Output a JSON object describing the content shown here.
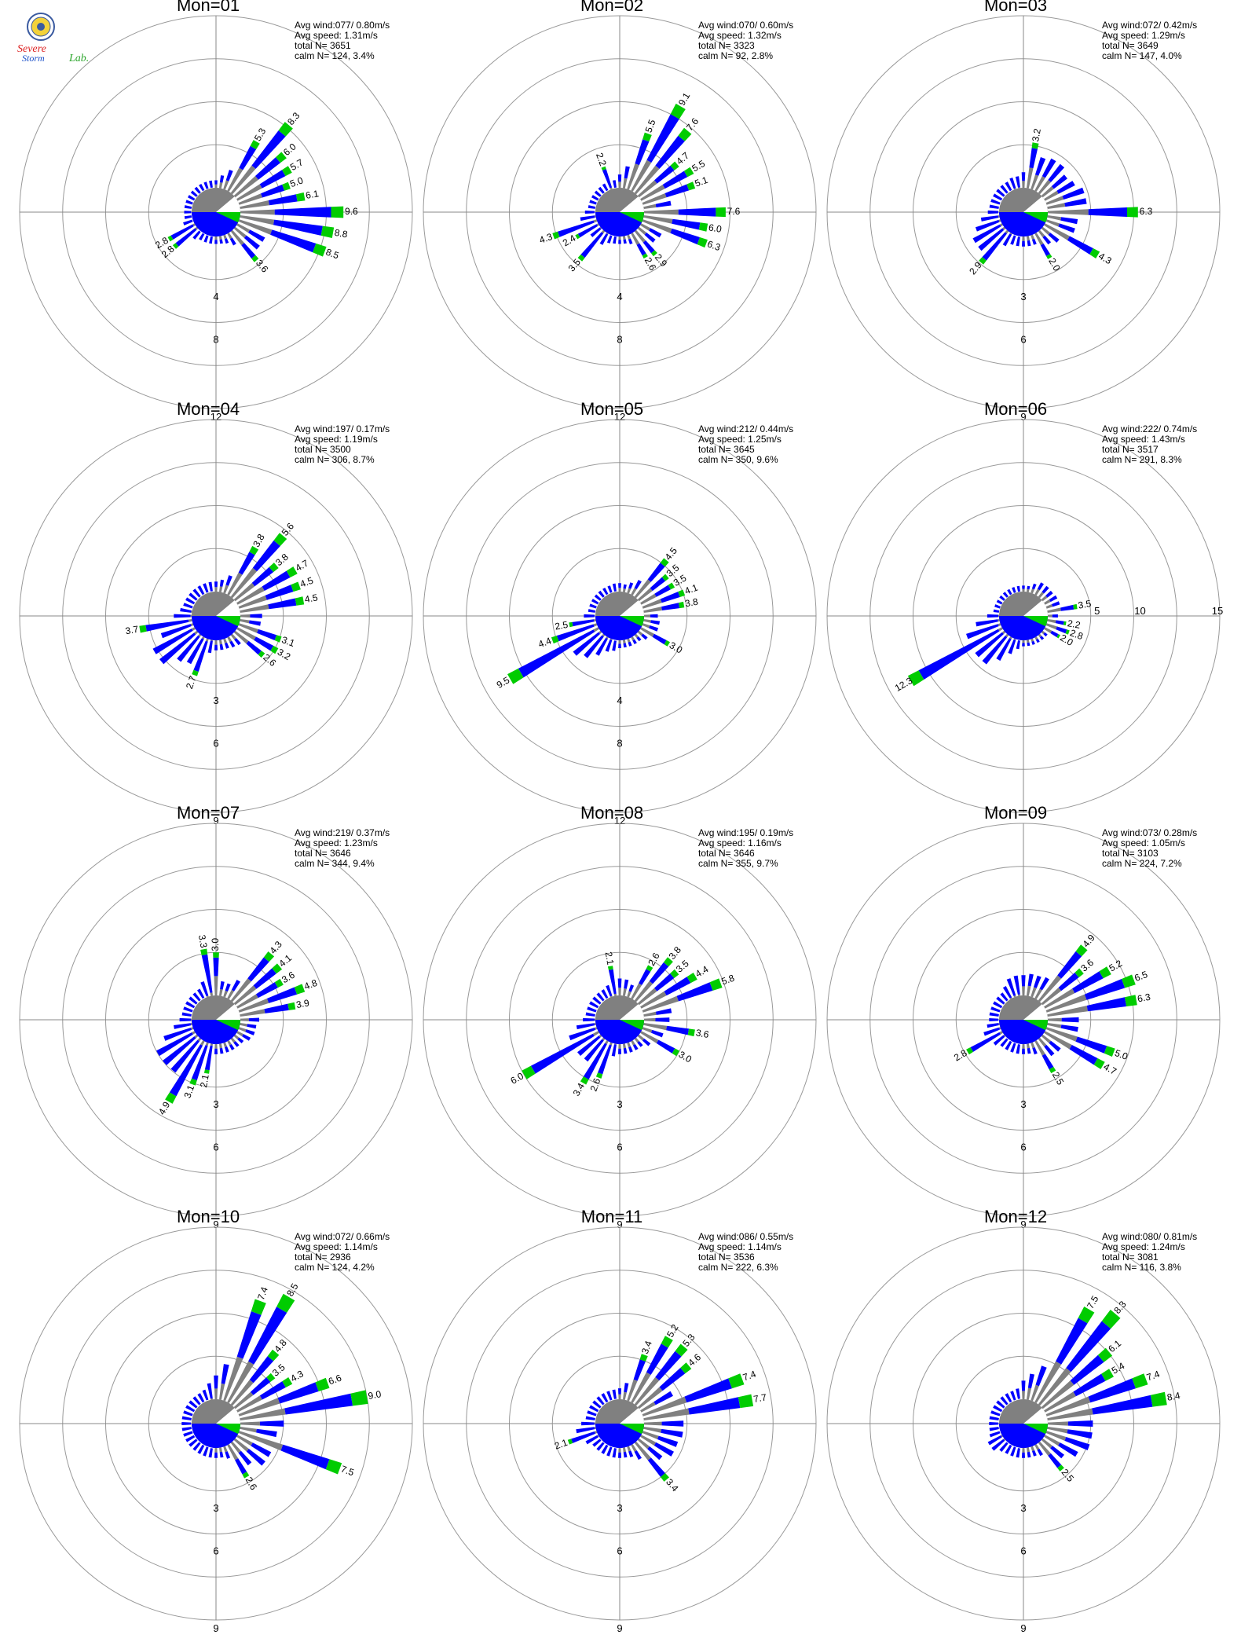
{
  "logo": {
    "text_line1": "Severe",
    "text_line2": "Storm",
    "text_line3": "Lab."
  },
  "colors": {
    "blue": "#0000ff",
    "gray": "#808080",
    "green": "#00cc00",
    "grid": "#999999",
    "axis": "#888888",
    "text": "#000000"
  },
  "chart_data": [
    {
      "type": "polar-bar",
      "title": "Mon=01",
      "stats": [
        "Avg wind:077/ 0.80m/s",
        "Avg speed: 1.31m/s",
        "total N=       3651",
        "calm N=    124,   3.4%"
      ],
      "ring_labels": [
        "4",
        "8",
        "12"
      ],
      "max": 16,
      "dirs": [
        [
          40,
          8.3,
          "8.3"
        ],
        [
          60,
          5.7,
          "5.7"
        ],
        [
          30,
          5.3,
          "5.3"
        ],
        [
          50,
          6.0,
          "6.0"
        ],
        [
          70,
          5.0,
          "5.0"
        ],
        [
          80,
          6.1,
          "6.1"
        ],
        [
          90,
          9.6,
          "9.6"
        ],
        [
          100,
          8.8,
          "8.8"
        ],
        [
          110,
          8.5,
          "8.5"
        ],
        [
          125,
          7.3,
          "7.3"
        ],
        [
          140,
          3.6,
          "3.6"
        ],
        [
          230,
          2.8,
          "2.8"
        ],
        [
          240,
          2.8,
          "2.8"
        ]
      ]
    },
    {
      "type": "polar-bar",
      "title": "Mon=02",
      "stats": [
        "Avg wind:070/ 0.60m/s",
        "Avg speed: 1.32m/s",
        "total N=       3323",
        "calm N=      92,   2.8%"
      ],
      "ring_labels": [
        "4",
        "8",
        "12"
      ],
      "max": 16,
      "dirs": [
        [
          20,
          5.5,
          "5.5"
        ],
        [
          30,
          9.1,
          "9.1"
        ],
        [
          40,
          7.6,
          "7.6"
        ],
        [
          50,
          4.7,
          "4.7"
        ],
        [
          60,
          5.5,
          "5.5"
        ],
        [
          70,
          5.1,
          "5.1"
        ],
        [
          90,
          7.6,
          "7.6"
        ],
        [
          100,
          6.0,
          "6.0"
        ],
        [
          110,
          6.3,
          "6.3"
        ],
        [
          125,
          4.9,
          "4.9"
        ],
        [
          140,
          2.9,
          "2.9"
        ],
        [
          150,
          2.6,
          "2.6"
        ],
        [
          -20,
          2.2,
          "2.2"
        ],
        [
          220,
          3.5,
          "3.5"
        ],
        [
          240,
          2.4,
          "2.4"
        ],
        [
          250,
          4.3,
          "4.3"
        ]
      ]
    },
    {
      "type": "polar-bar",
      "title": "Mon=03",
      "stats": [
        "Avg wind:072/ 0.42m/s",
        "Avg speed: 1.29m/s",
        "total N=       3649",
        "calm N=    147,   4.0%"
      ],
      "ring_labels": [
        "3",
        "6",
        "9"
      ],
      "max": 12,
      "dirs": [
        [
          10,
          3.2,
          "3.2"
        ],
        [
          25,
          5.9,
          "5.9"
        ],
        [
          35,
          6.4,
          "6.4"
        ],
        [
          45,
          5.5,
          "5.5"
        ],
        [
          55,
          5.2,
          "5.2"
        ],
        [
          65,
          6.0,
          "6.0"
        ],
        [
          75,
          7.0,
          "7.0"
        ],
        [
          90,
          6.3,
          "6.3"
        ],
        [
          105,
          5.3,
          "5.3"
        ],
        [
          120,
          4.3,
          "4.3"
        ],
        [
          135,
          2.9,
          "2.9"
        ],
        [
          150,
          2.0,
          "2.0"
        ],
        [
          -15,
          2.1,
          "2.1"
        ],
        [
          220,
          2.9,
          "2.9"
        ],
        [
          235,
          5.8,
          "5.8"
        ],
        [
          245,
          4.6,
          "4.6"
        ],
        [
          255,
          2.8,
          "2.8"
        ]
      ]
    },
    {
      "type": "polar-bar",
      "title": "Mon=04",
      "stats": [
        "Avg wind:197/ 0.17m/s",
        "Avg speed: 1.19m/s",
        "total N=       3500",
        "calm N=    306,   8.7%"
      ],
      "ring_labels": [
        "3",
        "6",
        "9"
      ],
      "max": 12,
      "dirs": [
        [
          30,
          3.8,
          "3.8"
        ],
        [
          40,
          5.6,
          "5.6"
        ],
        [
          50,
          3.8,
          "3.8"
        ],
        [
          60,
          4.7,
          "4.7"
        ],
        [
          70,
          4.5,
          "4.5"
        ],
        [
          80,
          4.5,
          "4.5"
        ],
        [
          95,
          3.7,
          "3.7"
        ],
        [
          110,
          3.1,
          "3.1"
        ],
        [
          120,
          3.2,
          "3.2"
        ],
        [
          130,
          2.6,
          "2.6"
        ],
        [
          145,
          2.0,
          "2.0"
        ],
        [
          200,
          2.7,
          "2.7"
        ],
        [
          215,
          5.3,
          "5.3"
        ],
        [
          235,
          8.3,
          "8.3"
        ],
        [
          245,
          5.3,
          "5.3"
        ],
        [
          260,
          3.7,
          "3.7"
        ]
      ]
    },
    {
      "type": "polar-bar",
      "title": "Mon=05",
      "stats": [
        "Avg wind:212/ 0.44m/s",
        "Avg speed: 1.25m/s",
        "total N=       3645",
        "calm N=    350,   9.6%"
      ],
      "ring_labels": [
        "4",
        "8",
        "12"
      ],
      "max": 16,
      "dirs": [
        [
          -5,
          2.0,
          "2.0"
        ],
        [
          25,
          2.4,
          "2.4"
        ],
        [
          40,
          4.5,
          "4.5"
        ],
        [
          50,
          3.5,
          "3.5"
        ],
        [
          60,
          3.5,
          "3.5"
        ],
        [
          70,
          4.1,
          "4.1"
        ],
        [
          80,
          3.8,
          "3.8"
        ],
        [
          95,
          3.0,
          "3.0"
        ],
        [
          105,
          3.8,
          "3.8"
        ],
        [
          120,
          3.0,
          "3.0"
        ],
        [
          195,
          2.6,
          "2.6"
        ],
        [
          205,
          3.1,
          "3.1"
        ],
        [
          215,
          4.4,
          "4.4"
        ],
        [
          225,
          6.8,
          "6.8"
        ],
        [
          240,
          9.5,
          "9.5"
        ],
        [
          250,
          4.4,
          "4.4"
        ],
        [
          260,
          2.5,
          "2.5"
        ]
      ]
    },
    {
      "type": "polar-bar",
      "title": "Mon=06",
      "stats": [
        "Avg wind:222/ 0.74m/s",
        "Avg speed: 1.43m/s",
        "total N=       3517",
        "calm N=    291,   8.3%"
      ],
      "ring_labels": [
        "5",
        "10",
        "15"
      ],
      "ring_labels_on_east": true,
      "max": 20,
      "dirs": [
        [
          35,
          4.0,
          "4.0"
        ],
        [
          45,
          3.7,
          "3.7"
        ],
        [
          55,
          3.8,
          "3.8"
        ],
        [
          65,
          4.1,
          "4.1"
        ],
        [
          80,
          3.5,
          "3.5"
        ],
        [
          100,
          2.2,
          "2.2"
        ],
        [
          110,
          2.8,
          "2.8"
        ],
        [
          120,
          2.0,
          "2.0"
        ],
        [
          195,
          2.4,
          "2.4"
        ],
        [
          205,
          2.6,
          "2.6"
        ],
        [
          215,
          6.3,
          "6.3"
        ],
        [
          225,
          10.8,
          "10.8"
        ],
        [
          240,
          12.3,
          "12.3"
        ],
        [
          255,
          3.9,
          "3.9"
        ]
      ]
    },
    {
      "type": "polar-bar",
      "title": "Mon=07",
      "stats": [
        "Avg wind:219/ 0.37m/s",
        "Avg speed: 1.23m/s",
        "total N=       3646",
        "calm N=    344,   9.4%"
      ],
      "ring_labels": [
        "3",
        "6",
        "9"
      ],
      "max": 12,
      "dirs": [
        [
          -10,
          3.3,
          "3.3"
        ],
        [
          0,
          3.0,
          "3.0"
        ],
        [
          25,
          2.3,
          "2.3"
        ],
        [
          40,
          4.3,
          "4.3"
        ],
        [
          50,
          4.1,
          "4.1"
        ],
        [
          60,
          3.6,
          "3.6"
        ],
        [
          70,
          4.8,
          "4.8"
        ],
        [
          80,
          3.9,
          "3.9"
        ],
        [
          95,
          2.9,
          "2.9"
        ],
        [
          105,
          2.9,
          "2.9"
        ],
        [
          115,
          2.6,
          "2.6"
        ],
        [
          190,
          2.1,
          "2.1"
        ],
        [
          200,
          3.1,
          "3.1"
        ],
        [
          210,
          4.9,
          "4.9"
        ],
        [
          225,
          7.5,
          "7.5"
        ],
        [
          235,
          7.6,
          "7.6"
        ],
        [
          255,
          3.0,
          "3.0"
        ]
      ]
    },
    {
      "type": "polar-bar",
      "title": "Mon=08",
      "stats": [
        "Avg wind:195/ 0.19m/s",
        "Avg speed: 1.16m/s",
        "total N=       3646",
        "calm N=    355,   9.7%"
      ],
      "ring_labels": [
        "3",
        "6",
        "9"
      ],
      "max": 12,
      "dirs": [
        [
          -10,
          2.1,
          "2.1"
        ],
        [
          -5,
          3.0,
          "3.0"
        ],
        [
          5,
          2.9,
          "2.9"
        ],
        [
          15,
          2.1,
          "2.1"
        ],
        [
          30,
          2.6,
          "2.6"
        ],
        [
          40,
          3.8,
          "3.8"
        ],
        [
          50,
          3.5,
          "3.5"
        ],
        [
          60,
          4.4,
          "4.4"
        ],
        [
          70,
          5.8,
          "5.8"
        ],
        [
          85,
          4.5,
          "4.5"
        ],
        [
          100,
          3.6,
          "3.6"
        ],
        [
          105,
          3.8,
          "3.8"
        ],
        [
          120,
          3.0,
          "3.0"
        ],
        [
          200,
          2.6,
          "2.6"
        ],
        [
          210,
          3.4,
          "3.4"
        ],
        [
          225,
          5.0,
          "5.0"
        ],
        [
          240,
          6.0,
          "6.0"
        ],
        [
          255,
          3.1,
          "3.1"
        ]
      ]
    },
    {
      "type": "polar-bar",
      "title": "Mon=09",
      "stats": [
        "Avg wind:073/ 0.28m/s",
        "Avg speed: 1.05m/s",
        "total N=       3103",
        "calm N=    224,   7.2%"
      ],
      "ring_labels": [
        "3",
        "6",
        "9"
      ],
      "max": 12,
      "dirs": [
        [
          -15,
          3.4,
          "3.4"
        ],
        [
          -5,
          3.6,
          "3.6"
        ],
        [
          5,
          3.4,
          "3.4"
        ],
        [
          15,
          3.9,
          "3.9"
        ],
        [
          25,
          3.5,
          "3.5"
        ],
        [
          40,
          4.9,
          "4.9"
        ],
        [
          50,
          3.6,
          "3.6"
        ],
        [
          60,
          5.2,
          "5.2"
        ],
        [
          70,
          6.5,
          "6.5"
        ],
        [
          80,
          6.3,
          "6.3"
        ],
        [
          95,
          5.5,
          "5.5"
        ],
        [
          110,
          5.0,
          "5.0"
        ],
        [
          120,
          4.7,
          "4.7"
        ],
        [
          135,
          3.8,
          "3.8"
        ],
        [
          150,
          2.5,
          "2.5"
        ],
        [
          240,
          2.8,
          "2.8"
        ],
        [
          245,
          3.1,
          "3.1"
        ]
      ]
    },
    {
      "type": "polar-bar",
      "title": "Mon=10",
      "stats": [
        "Avg wind:072/ 0.66m/s",
        "Avg speed: 1.14m/s",
        "total N=       2936",
        "calm N=    124,   4.2%"
      ],
      "ring_labels": [
        "3",
        "6",
        "9"
      ],
      "max": 12,
      "dirs": [
        [
          -5,
          2.8,
          "2.8"
        ],
        [
          5,
          4.1,
          "4.1"
        ],
        [
          20,
          7.4,
          "7.4"
        ],
        [
          30,
          8.5,
          "8.5"
        ],
        [
          40,
          4.8,
          "4.8"
        ],
        [
          50,
          3.5,
          "3.5"
        ],
        [
          60,
          4.3,
          "4.3"
        ],
        [
          70,
          6.6,
          "6.6"
        ],
        [
          80,
          9.0,
          "9.0"
        ],
        [
          95,
          6.6,
          "6.6"
        ],
        [
          110,
          7.5,
          "7.5"
        ],
        [
          125,
          6.7,
          "6.7"
        ],
        [
          135,
          5.0,
          "5.0"
        ],
        [
          150,
          2.6,
          "2.6"
        ]
      ]
    },
    {
      "type": "polar-bar",
      "title": "Mon=11",
      "stats": [
        "Avg wind:086/ 0.55m/s",
        "Avg speed: 1.14m/s",
        "total N=       3536",
        "calm N=    222,   6.3%"
      ],
      "ring_labels": [
        "3",
        "6",
        "9"
      ],
      "max": 12,
      "dirs": [
        [
          20,
          3.4,
          "3.4"
        ],
        [
          30,
          5.2,
          "5.2"
        ],
        [
          40,
          5.3,
          "5.3"
        ],
        [
          50,
          4.6,
          "4.6"
        ],
        [
          55,
          4.7,
          "4.7"
        ],
        [
          70,
          7.4,
          "7.4"
        ],
        [
          80,
          7.7,
          "7.7"
        ],
        [
          95,
          7.0,
          "7.0"
        ],
        [
          105,
          6.5,
          "6.5"
        ],
        [
          115,
          6.5,
          "6.5"
        ],
        [
          125,
          5.2,
          "5.2"
        ],
        [
          140,
          3.4,
          "3.4"
        ],
        [
          250,
          2.1,
          "2.1"
        ],
        [
          255,
          3.5,
          "3.5"
        ]
      ]
    },
    {
      "type": "polar-bar",
      "title": "Mon=12",
      "stats": [
        "Avg wind:080/ 0.81m/s",
        "Avg speed: 1.24m/s",
        "total N=       3081",
        "calm N=    116,   3.8%"
      ],
      "ring_labels": [
        "3",
        "6",
        "9"
      ],
      "max": 12,
      "dirs": [
        [
          15,
          4.6,
          "4.6"
        ],
        [
          30,
          7.5,
          "7.5"
        ],
        [
          40,
          8.3,
          "8.3"
        ],
        [
          50,
          6.1,
          "6.1"
        ],
        [
          60,
          5.4,
          "5.4"
        ],
        [
          70,
          7.4,
          "7.4"
        ],
        [
          80,
          8.4,
          "8.4"
        ],
        [
          95,
          8.0,
          "8.0"
        ],
        [
          105,
          8.0,
          "8.0"
        ],
        [
          115,
          6.6,
          "6.6"
        ],
        [
          125,
          4.8,
          "4.8"
        ],
        [
          140,
          2.5,
          "2.5"
        ],
        [
          235,
          2.8,
          "2.8"
        ]
      ]
    }
  ]
}
